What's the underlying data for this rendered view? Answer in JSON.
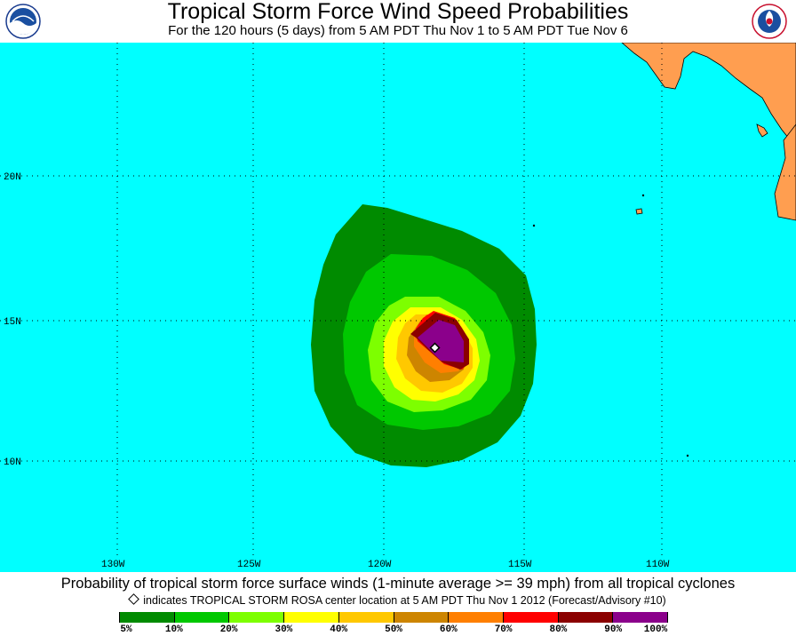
{
  "header": {
    "title": "Tropical Storm Force Wind Speed Probabilities",
    "subtitle": "For the 120 hours (5 days) from 5 AM PDT Thu Nov 1 to 5 AM PDT Tue Nov 6",
    "left_logo": "noaa-logo",
    "right_logo": "national-weather-service-logo"
  },
  "map": {
    "lat_labels": [
      "20N",
      "15N",
      "10N"
    ],
    "lon_labels": [
      "130W",
      "125W",
      "120W",
      "115W",
      "110W"
    ],
    "colors": {
      "ocean": "#00ffff",
      "land": "#ff9e50",
      "grid": "#000000"
    },
    "storm_center_marker": "diamond"
  },
  "footer": {
    "caption": "Probability of tropical storm force surface winds (1-minute average >= 39 mph) from all tropical cyclones",
    "note": "indicates TROPICAL STORM ROSA center location at 5 AM PDT Thu Nov 1 2012 (Forecast/Advisory #10)"
  },
  "legend": {
    "labels": [
      "5%",
      "10%",
      "20%",
      "30%",
      "40%",
      "50%",
      "60%",
      "70%",
      "80%",
      "90%",
      "100%"
    ],
    "colors": [
      "#008b00",
      "#00c800",
      "#7dff00",
      "#ffff00",
      "#ffc800",
      "#cd8500",
      "#ff7f00",
      "#ff0000",
      "#8b0000",
      "#8b008b"
    ]
  }
}
